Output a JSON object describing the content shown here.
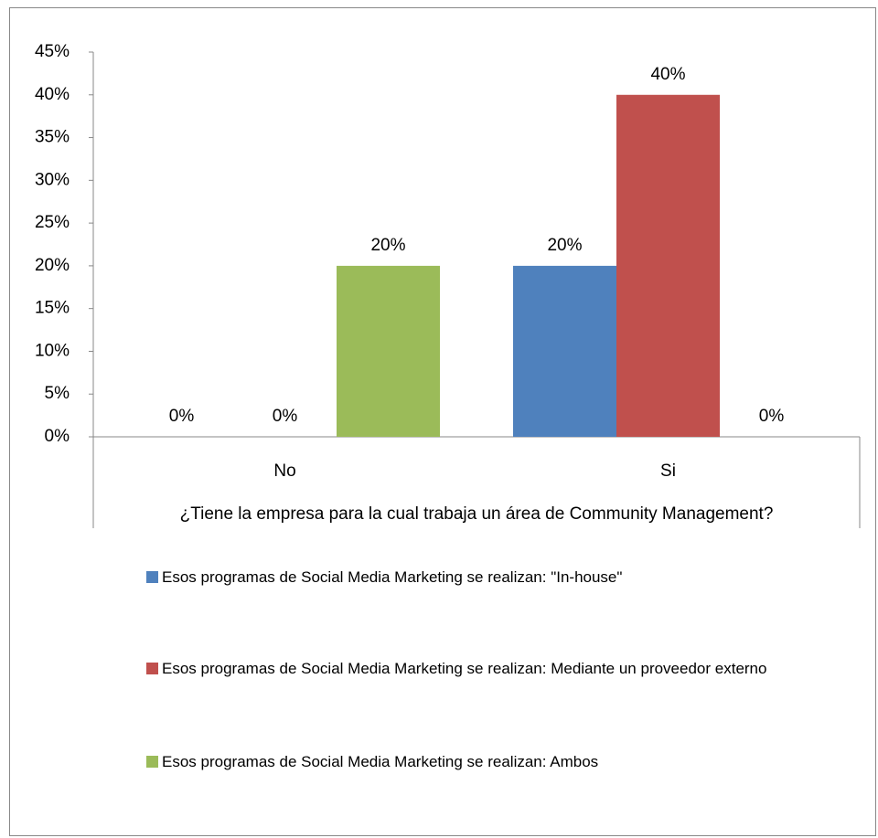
{
  "chart_data": {
    "type": "bar",
    "x_label": "¿Tiene la empresa para la cual trabaja un área de Community Management?",
    "categories": [
      "No",
      "Si"
    ],
    "series": [
      {
        "name": "Esos programas de Social Media Marketing se realizan: \"In-house\"",
        "color": "#4f81bd",
        "values": [
          0,
          20
        ],
        "value_labels": [
          "0%",
          "20%"
        ]
      },
      {
        "name": "Esos programas de Social Media Marketing se realizan: Mediante un proveedor externo",
        "color": "#c0504d",
        "values": [
          0,
          40
        ],
        "value_labels": [
          "0%",
          "40%"
        ]
      },
      {
        "name": "Esos programas de Social Media Marketing se realizan: Ambos",
        "color": "#9bbb59",
        "values": [
          20,
          0
        ],
        "value_labels": [
          "20%",
          "0%"
        ]
      }
    ],
    "ylim": [
      0,
      45
    ],
    "yticks": [
      {
        "value": 0,
        "label": "0%"
      },
      {
        "value": 5,
        "label": "5%"
      },
      {
        "value": 10,
        "label": "10%"
      },
      {
        "value": 15,
        "label": "15%"
      },
      {
        "value": 20,
        "label": "20%"
      },
      {
        "value": 25,
        "label": "25%"
      },
      {
        "value": 30,
        "label": "30%"
      },
      {
        "value": 35,
        "label": "35%"
      },
      {
        "value": 40,
        "label": "40%"
      },
      {
        "value": 45,
        "label": "45%"
      }
    ],
    "grid": false,
    "legend": "bottom"
  }
}
